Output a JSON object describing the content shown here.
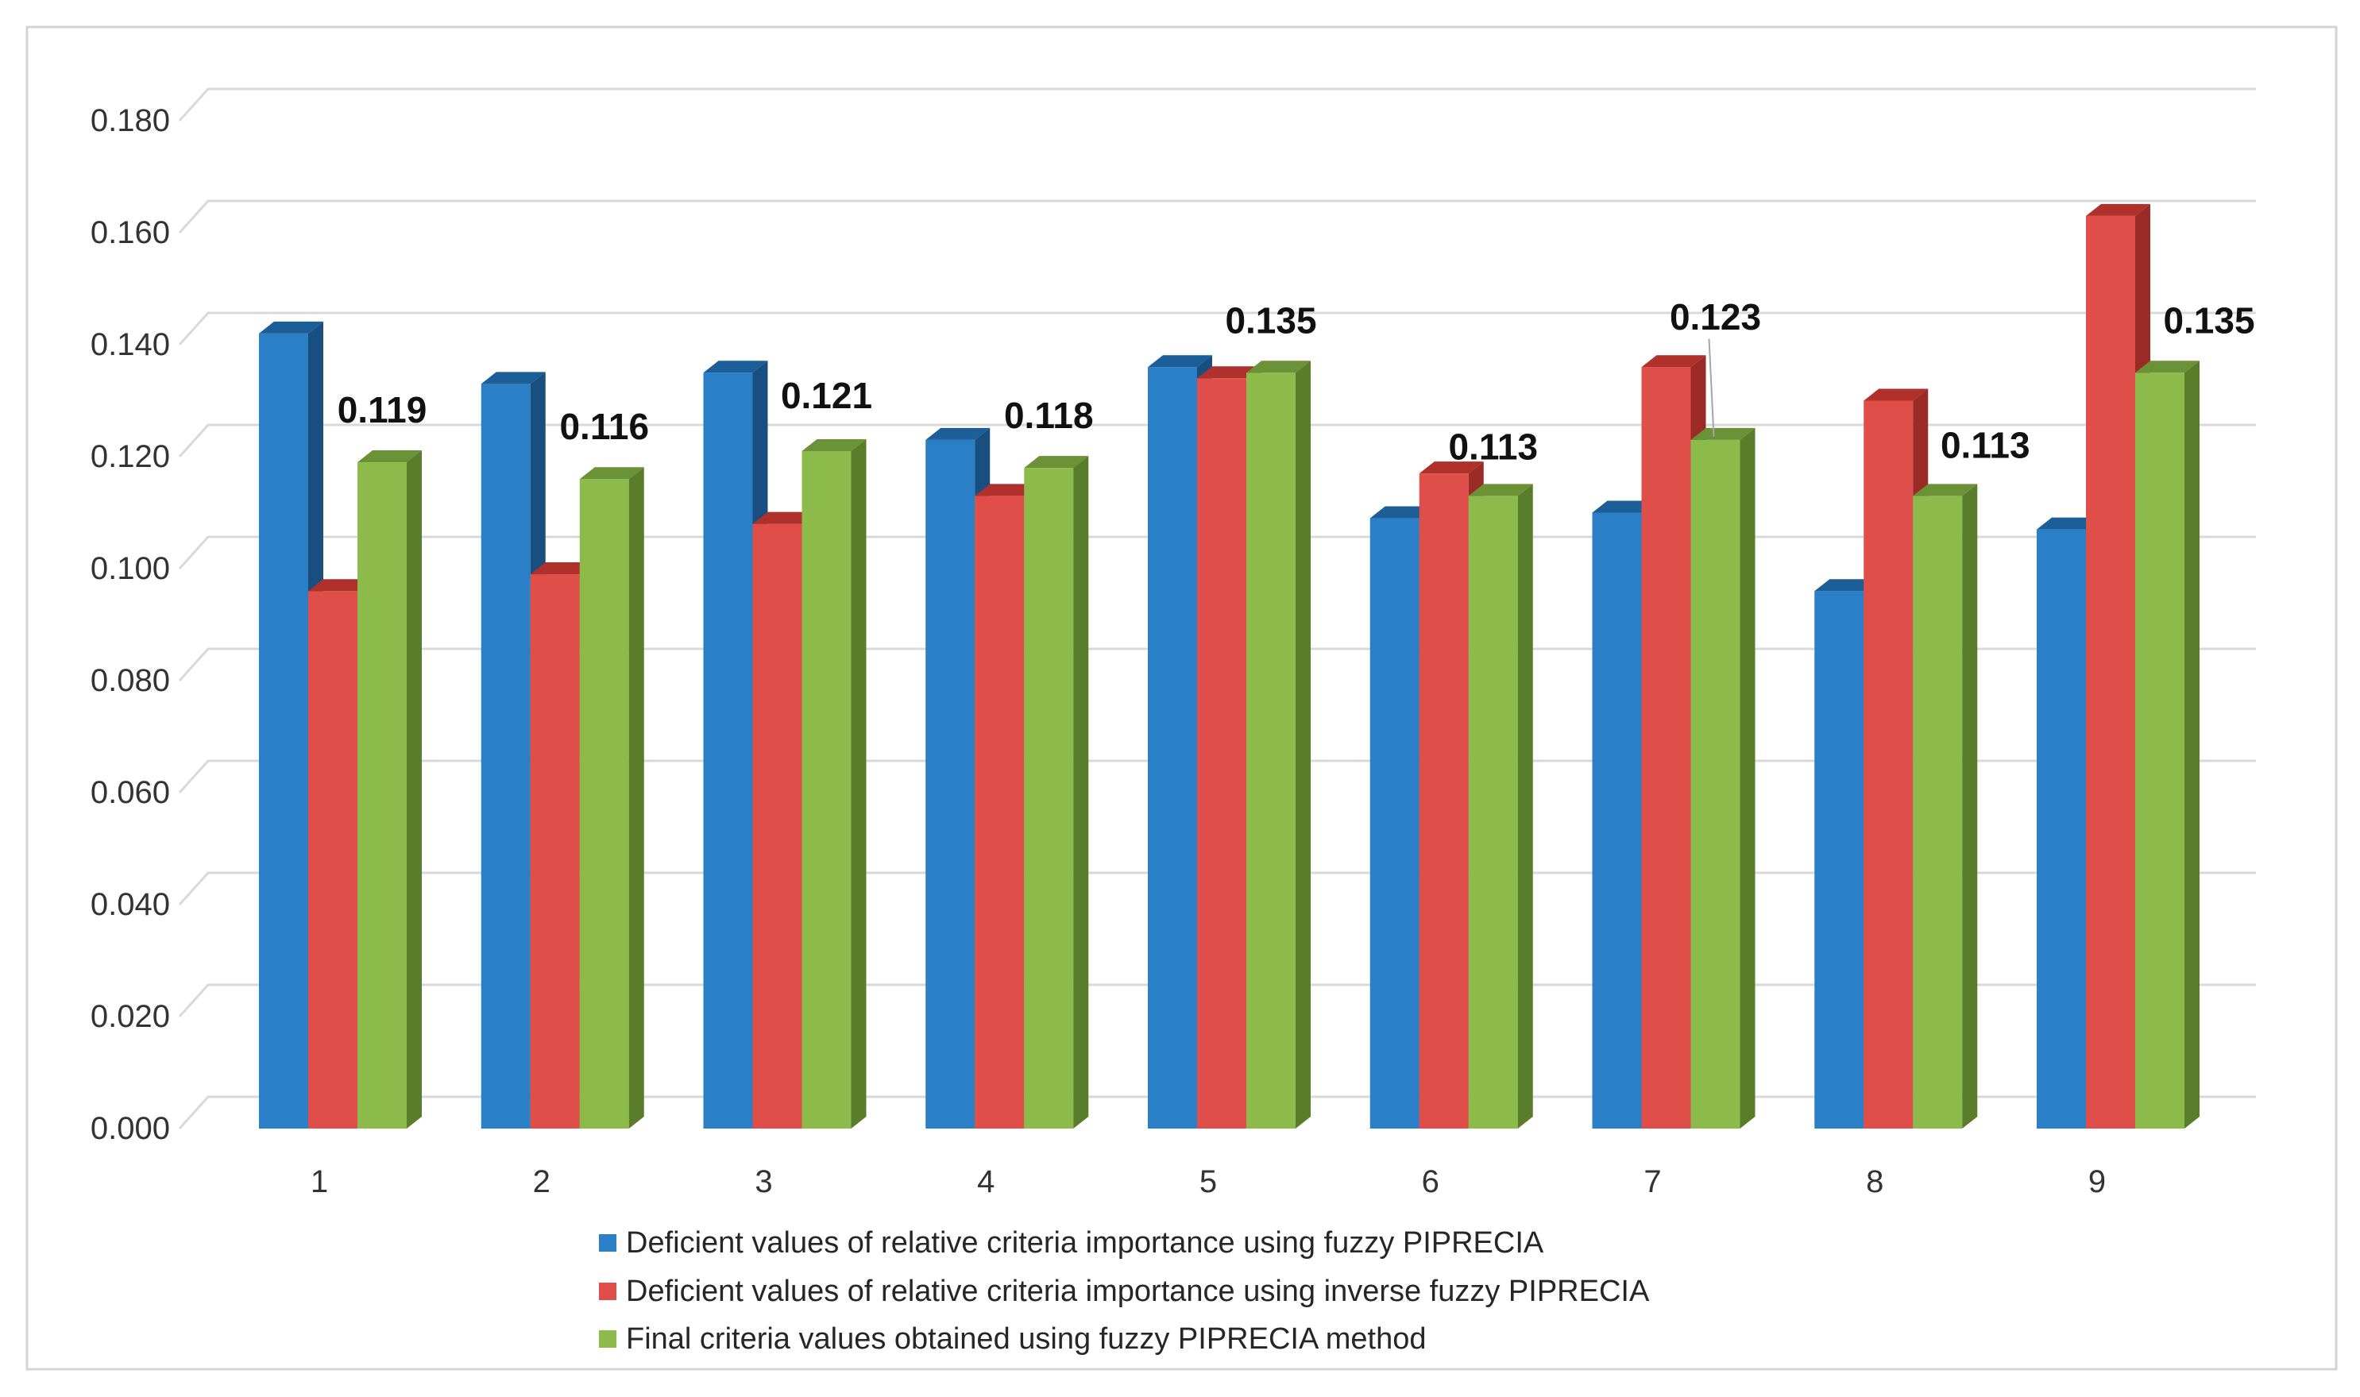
{
  "chart_data": {
    "type": "bar",
    "categories": [
      "1",
      "2",
      "3",
      "4",
      "5",
      "6",
      "7",
      "8",
      "9"
    ],
    "series": [
      {
        "name": "Deficient values of relative criteria importance using fuzzy PIPRECIA",
        "color": "#2a7fc7",
        "top_color": "#1c5e98",
        "side_color": "#184f80",
        "values": [
          0.142,
          0.133,
          0.135,
          0.123,
          0.136,
          0.109,
          0.11,
          0.096,
          0.107
        ]
      },
      {
        "name": "Deficient values of relative criteria importance using inverse fuzzy PIPRECIA",
        "color": "#e04e49",
        "top_color": "#b0302c",
        "side_color": "#9a2b27",
        "values": [
          0.096,
          0.099,
          0.108,
          0.113,
          0.134,
          0.117,
          0.136,
          0.13,
          0.163
        ]
      },
      {
        "name": "Final criteria values obtained using fuzzy PIPRECIA method",
        "color": "#8cbb4c",
        "top_color": "#6b9236",
        "side_color": "#5a7d2c",
        "values": [
          0.119,
          0.116,
          0.121,
          0.118,
          0.135,
          0.113,
          0.123,
          0.113,
          0.135
        ],
        "data_labels": [
          "0.119",
          "0.116",
          "0.121",
          "0.118",
          "0.135",
          "0.113",
          "0.123",
          "0.113",
          "0.135"
        ]
      }
    ],
    "ylim": [
      0,
      0.18
    ],
    "yticks": [
      "0.000",
      "0.020",
      "0.040",
      "0.060",
      "0.080",
      "0.100",
      "0.120",
      "0.140",
      "0.160",
      "0.180"
    ],
    "grid": true,
    "legend_position": "bottom"
  }
}
